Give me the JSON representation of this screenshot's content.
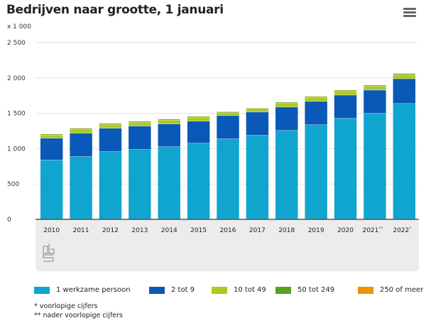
{
  "header": {
    "title": "Bedrijven naar grootte, 1 januari",
    "unit": "x 1 000",
    "menu_icon": "hamburger-menu-icon"
  },
  "footnotes": [
    "* voorlopige cijfers",
    "** nader voorlopige cijfers"
  ],
  "logo": "cbs-logo",
  "chart_data": {
    "type": "bar",
    "stacked": true,
    "title": "Bedrijven naar grootte, 1 januari",
    "ylabel": "x 1 000",
    "xlabel": "",
    "ylim": [
      0,
      2500
    ],
    "yticks": [
      0,
      500,
      1000,
      1500,
      2000,
      2500
    ],
    "ytick_labels": [
      "0",
      "500",
      "1 000",
      "1 500",
      "2 000",
      "2 500"
    ],
    "grid": true,
    "legend_position": "bottom",
    "categories": [
      "2010",
      "2011",
      "2012",
      "2013",
      "2014",
      "2015",
      "2016",
      "2017",
      "2018",
      "2019",
      "2020",
      "2021**",
      "2022*"
    ],
    "series": [
      {
        "name": "1 werkzame persoon",
        "color": "#0fa5cf",
        "values": [
          840,
          890,
          960,
          990,
          1030,
          1080,
          1140,
          1190,
          1260,
          1340,
          1430,
          1500,
          1640
        ]
      },
      {
        "name": "2 tot 9",
        "color": "#0a58b8",
        "values": [
          310,
          330,
          330,
          330,
          320,
          310,
          330,
          330,
          330,
          330,
          330,
          330,
          350
        ]
      },
      {
        "name": "10 tot 49",
        "color": "#afc922",
        "values": [
          45,
          55,
          55,
          55,
          55,
          55,
          40,
          40,
          55,
          55,
          55,
          55,
          60
        ]
      },
      {
        "name": "50 tot 249",
        "color": "#53a31d",
        "values": [
          8,
          9,
          9,
          9,
          9,
          9,
          9,
          9,
          9,
          10,
          10,
          10,
          10
        ]
      },
      {
        "name": "250 of meer",
        "color": "#f39200",
        "values": [
          2,
          2,
          2,
          2,
          2,
          2,
          2,
          2,
          2,
          2,
          2,
          2,
          2
        ]
      }
    ]
  }
}
